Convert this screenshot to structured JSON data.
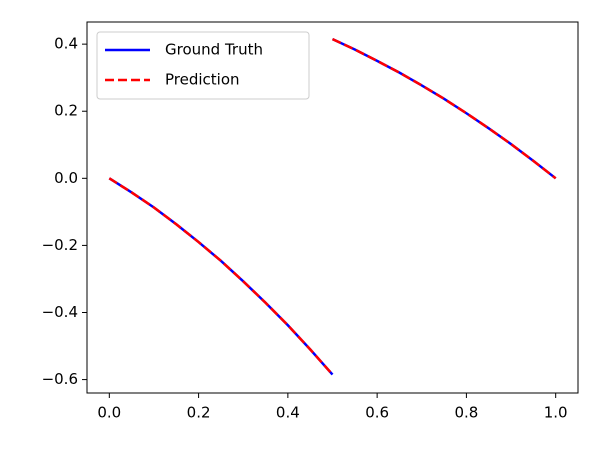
{
  "chart_data": {
    "type": "line",
    "x": [
      0,
      0.05,
      0.1,
      0.15,
      0.2,
      0.25,
      0.3,
      0.35,
      0.4,
      0.45,
      0.5,
      0.5,
      0.5,
      0.55,
      0.6,
      0.65,
      0.7,
      0.75,
      0.8,
      0.85,
      0.9,
      0.95,
      1
    ],
    "series": [
      {
        "name": "Ground Truth",
        "color": "#0000ff",
        "dash": "solid",
        "values": [
          0,
          -0.042,
          -0.087,
          -0.137,
          -0.19,
          -0.246,
          -0.307,
          -0.371,
          -0.438,
          -0.51,
          -0.585,
          null,
          0.415,
          0.384,
          0.35,
          0.315,
          0.277,
          0.237,
          0.194,
          0.149,
          0.102,
          0.052,
          0
        ]
      },
      {
        "name": "Prediction",
        "color": "#ff0000",
        "dash": "dashed",
        "values": [
          0,
          -0.042,
          -0.087,
          -0.137,
          -0.19,
          -0.246,
          -0.307,
          -0.371,
          -0.438,
          -0.51,
          -0.585,
          null,
          0.415,
          0.384,
          0.35,
          0.315,
          0.277,
          0.237,
          0.194,
          0.149,
          0.102,
          0.052,
          0
        ]
      }
    ],
    "xlim": [
      -0.05,
      1.05
    ],
    "xticks": [
      {
        "value": 0,
        "label": "0.0"
      },
      0.2,
      0.4,
      0.6,
      0.8,
      {
        "value": 1,
        "label": "1.0"
      }
    ],
    "ylim": [
      -0.64,
      0.466
    ],
    "yticks": [
      {
        "value": -0.6,
        "label": "−0.6"
      },
      {
        "value": -0.4,
        "label": "−0.4"
      },
      {
        "value": -0.2,
        "label": "−0.2"
      },
      {
        "value": 0,
        "label": "0.0"
      },
      0.2,
      0.4
    ],
    "grid": false,
    "legend": "upper left"
  }
}
